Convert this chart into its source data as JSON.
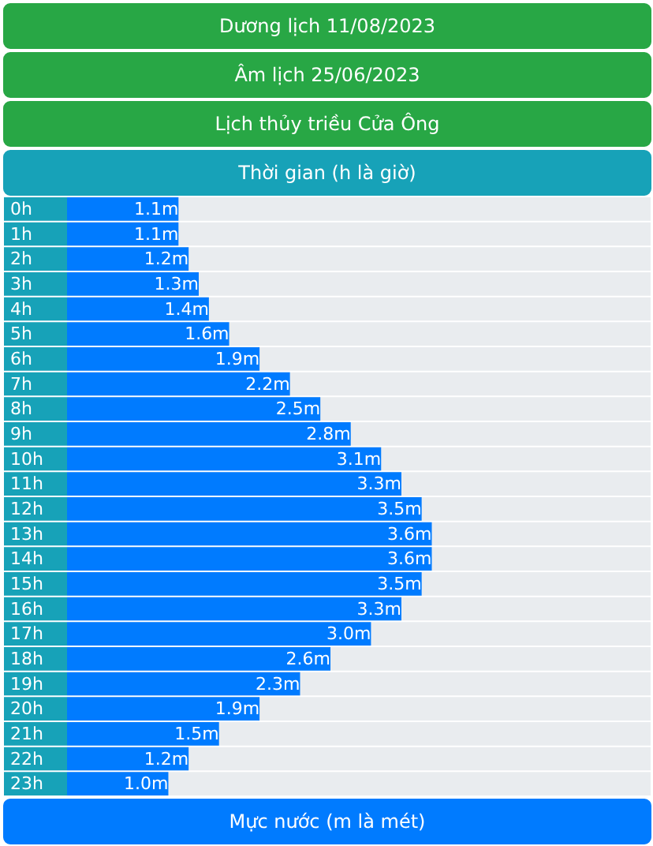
{
  "chart_data": {
    "type": "bar",
    "orientation": "horizontal",
    "title": "Dương lịch 11/08/2023",
    "subtitle": "Âm lịch 25/06/2023",
    "annotations": [
      "Lịch thủy triều Cửa Ông"
    ],
    "ylabel": "Thời gian (h là giờ)",
    "xlabel": "Mực nước (m là mét)",
    "categories": [
      "0h",
      "1h",
      "2h",
      "3h",
      "4h",
      "5h",
      "6h",
      "7h",
      "8h",
      "9h",
      "10h",
      "11h",
      "12h",
      "13h",
      "14h",
      "15h",
      "16h",
      "17h",
      "18h",
      "19h",
      "20h",
      "21h",
      "22h",
      "23h"
    ],
    "values": [
      1.1,
      1.1,
      1.2,
      1.3,
      1.4,
      1.6,
      1.9,
      2.2,
      2.5,
      2.8,
      3.1,
      3.3,
      3.5,
      3.6,
      3.6,
      3.5,
      3.3,
      3.0,
      2.6,
      2.3,
      1.9,
      1.5,
      1.2,
      1.0
    ],
    "value_labels": [
      "1.1m",
      "1.1m",
      "1.2m",
      "1.3m",
      "1.4m",
      "1.6m",
      "1.9m",
      "2.2m",
      "2.5m",
      "2.8m",
      "3.1m",
      "3.3m",
      "3.5m",
      "3.6m",
      "3.6m",
      "3.5m",
      "3.3m",
      "3.0m",
      "2.6m",
      "2.3m",
      "1.9m",
      "1.5m",
      "1.2m",
      "1.0m"
    ],
    "color": "#007bff"
  }
}
